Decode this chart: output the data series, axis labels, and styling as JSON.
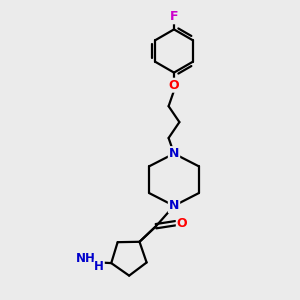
{
  "background_color": "#ebebeb",
  "bond_color": "#000000",
  "bond_width": 1.6,
  "atom_colors": {
    "N": "#0000cc",
    "O": "#ff0000",
    "F": "#cc00cc",
    "C": "#000000"
  },
  "fig_width": 3.0,
  "fig_height": 3.0,
  "dpi": 100
}
